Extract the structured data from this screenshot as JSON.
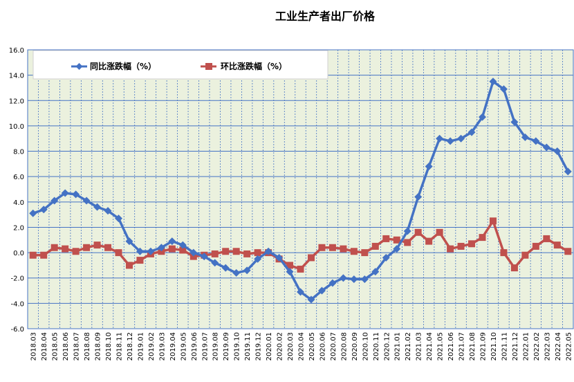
{
  "chart_data": {
    "type": "line",
    "title": "工业生产者出厂价格",
    "xlabel": "",
    "ylabel": "",
    "ylim": [
      -6,
      16
    ],
    "yticks": [
      "16.0",
      "14.0",
      "12.0",
      "10.0",
      "8.0",
      "6.0",
      "4.0",
      "2.0",
      "0.0",
      "-2.0",
      "-4.0",
      "-6.0"
    ],
    "grid": true,
    "legend_position": "top-left",
    "categories": [
      "2018.03",
      "2018.04",
      "2018.05",
      "2018.06",
      "2018.07",
      "2018.08",
      "2018.09",
      "2018.10",
      "2018.11",
      "2018.12",
      "2019.01",
      "2019.02",
      "2019.03",
      "2019.04",
      "2019.05",
      "2019.06",
      "2019.07",
      "2019.08",
      "2019.09",
      "2019.10",
      "2019.11",
      "2019.12",
      "2020.01",
      "2020.02",
      "2020.03",
      "2020.04",
      "2020.05",
      "2020.06",
      "2020.07",
      "2020.08",
      "2020.09",
      "2020.10",
      "2020.11",
      "2020.12",
      "2021.01",
      "2021.02",
      "2021.03",
      "2021.04",
      "2021.05",
      "2021.06",
      "2021.07",
      "2021.08",
      "2021.09",
      "2021.10",
      "2021.11",
      "2021.12",
      "2022.01",
      "2022.02",
      "2022.03",
      "2022.04",
      "2022.05"
    ],
    "series": [
      {
        "name": "同比涨跌幅（%）",
        "color": "#4472C4",
        "marker": "diamond",
        "values": [
          3.1,
          3.4,
          4.1,
          4.7,
          4.6,
          4.1,
          3.6,
          3.3,
          2.7,
          0.9,
          0.1,
          0.1,
          0.4,
          0.9,
          0.6,
          0.0,
          -0.3,
          -0.8,
          -1.2,
          -1.6,
          -1.4,
          -0.5,
          0.1,
          -0.4,
          -1.5,
          -3.1,
          -3.7,
          -3.0,
          -2.4,
          -2.0,
          -2.1,
          -2.1,
          -1.5,
          -0.4,
          0.3,
          1.7,
          4.4,
          6.8,
          9.0,
          8.8,
          9.0,
          9.5,
          10.7,
          13.5,
          12.9,
          10.3,
          9.1,
          8.8,
          8.3,
          8.0,
          6.4
        ]
      },
      {
        "name": "环比涨跌幅（%）",
        "color": "#C0504D",
        "marker": "square",
        "values": [
          -0.2,
          -0.2,
          0.4,
          0.3,
          0.1,
          0.4,
          0.6,
          0.4,
          0.0,
          -1.0,
          -0.6,
          -0.1,
          0.1,
          0.3,
          0.2,
          -0.3,
          -0.2,
          -0.1,
          0.1,
          0.1,
          -0.1,
          0.0,
          0.0,
          -0.5,
          -1.0,
          -1.3,
          -0.4,
          0.4,
          0.4,
          0.3,
          0.1,
          0.0,
          0.5,
          1.1,
          1.0,
          0.8,
          1.6,
          0.9,
          1.6,
          0.3,
          0.5,
          0.7,
          1.2,
          2.5,
          0.0,
          -1.2,
          -0.2,
          0.5,
          1.1,
          0.6,
          0.1
        ]
      }
    ]
  }
}
